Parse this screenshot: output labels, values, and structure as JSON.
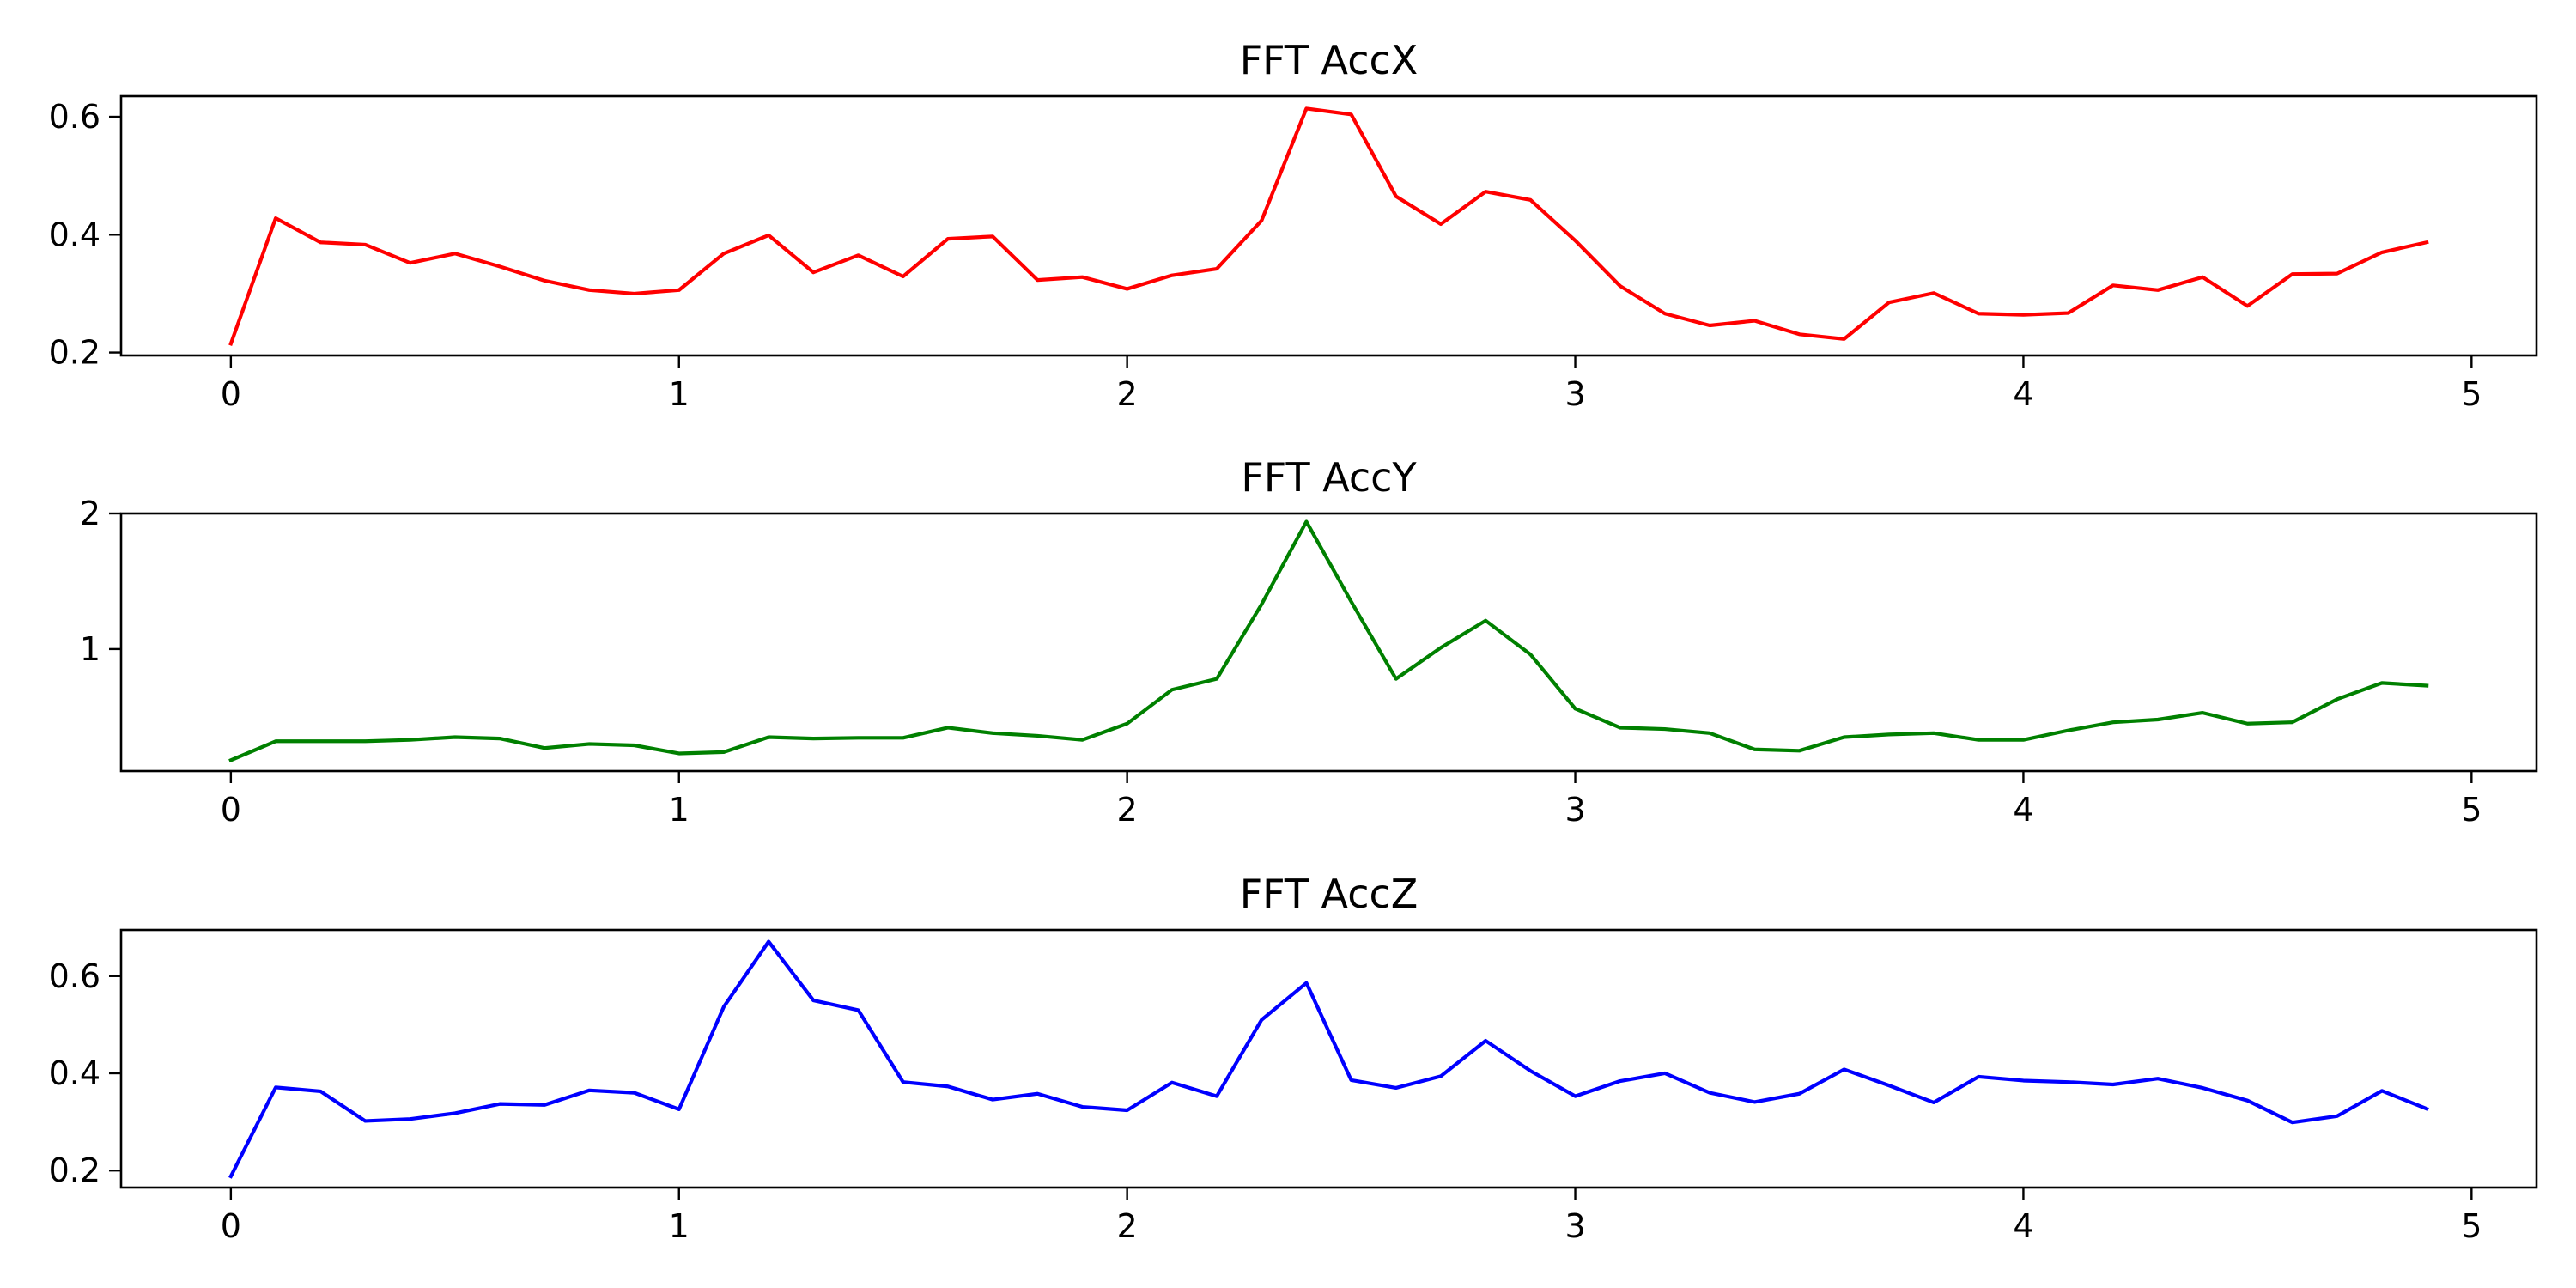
{
  "chart_data": [
    {
      "type": "line",
      "title": "FFT AccX",
      "xlabel": "",
      "ylabel": "",
      "xlim": [
        -0.245,
        5.145
      ],
      "ylim": [
        0.195,
        0.635
      ],
      "xticks": [
        0,
        1,
        2,
        3,
        4,
        5
      ],
      "yticks": [
        0.2,
        0.4,
        0.6
      ],
      "tick_labels_x": [
        "0",
        "1",
        "2",
        "3",
        "4",
        "5"
      ],
      "tick_labels_y": [
        "0.2",
        "0.4",
        "0.6"
      ],
      "grid": false,
      "color": "#ff0000",
      "x": [
        0.0,
        0.1,
        0.2,
        0.3,
        0.4,
        0.5,
        0.6,
        0.7,
        0.8,
        0.9,
        1.0,
        1.1,
        1.2,
        1.3,
        1.4,
        1.5,
        1.6,
        1.7,
        1.8,
        1.9,
        2.0,
        2.1,
        2.2,
        2.3,
        2.4,
        2.5,
        2.6,
        2.7,
        2.8,
        2.9,
        3.0,
        3.1,
        3.2,
        3.3,
        3.4,
        3.5,
        3.6,
        3.7,
        3.8,
        3.9,
        4.0,
        4.1,
        4.2,
        4.3,
        4.4,
        4.5,
        4.6,
        4.7,
        4.8,
        4.9
      ],
      "y": [
        0.215,
        0.428,
        0.387,
        0.383,
        0.352,
        0.368,
        0.346,
        0.322,
        0.306,
        0.3,
        0.306,
        0.368,
        0.399,
        0.336,
        0.365,
        0.329,
        0.393,
        0.397,
        0.323,
        0.328,
        0.308,
        0.331,
        0.342,
        0.424,
        0.614,
        0.604,
        0.465,
        0.418,
        0.473,
        0.459,
        0.39,
        0.313,
        0.266,
        0.246,
        0.254,
        0.231,
        0.223,
        0.285,
        0.301,
        0.266,
        0.264,
        0.267,
        0.314,
        0.306,
        0.328,
        0.279,
        0.333,
        0.334,
        0.37,
        0.387
      ]
    },
    {
      "type": "line",
      "title": "FFT AccY",
      "xlabel": "",
      "ylabel": "",
      "xlim": [
        -0.245,
        5.145
      ],
      "ylim": [
        0.1,
        2.0
      ],
      "xticks": [
        0,
        1,
        2,
        3,
        4,
        5
      ],
      "yticks": [
        1,
        2
      ],
      "tick_labels_x": [
        "0",
        "1",
        "2",
        "3",
        "4",
        "5"
      ],
      "tick_labels_y": [
        "1",
        "2"
      ],
      "grid": false,
      "color": "#008000",
      "x": [
        0.0,
        0.1,
        0.2,
        0.3,
        0.4,
        0.5,
        0.6,
        0.7,
        0.8,
        0.9,
        1.0,
        1.1,
        1.2,
        1.3,
        1.4,
        1.5,
        1.6,
        1.7,
        1.8,
        1.9,
        2.0,
        2.1,
        2.2,
        2.3,
        2.4,
        2.5,
        2.6,
        2.7,
        2.8,
        2.9,
        3.0,
        3.1,
        3.2,
        3.3,
        3.4,
        3.5,
        3.6,
        3.7,
        3.8,
        3.9,
        4.0,
        4.1,
        4.2,
        4.3,
        4.4,
        4.5,
        4.6,
        4.7,
        4.8,
        4.9
      ],
      "y": [
        0.18,
        0.32,
        0.32,
        0.32,
        0.33,
        0.35,
        0.34,
        0.27,
        0.3,
        0.29,
        0.23,
        0.24,
        0.35,
        0.34,
        0.345,
        0.345,
        0.42,
        0.38,
        0.36,
        0.33,
        0.45,
        0.7,
        0.78,
        1.33,
        1.94,
        1.35,
        0.78,
        1.01,
        1.21,
        0.96,
        0.56,
        0.42,
        0.41,
        0.38,
        0.26,
        0.25,
        0.35,
        0.37,
        0.38,
        0.33,
        0.33,
        0.4,
        0.46,
        0.48,
        0.53,
        0.45,
        0.46,
        0.63,
        0.75,
        0.73
      ]
    },
    {
      "type": "line",
      "title": "FFT AccZ",
      "xlabel": "",
      "ylabel": "",
      "xlim": [
        -0.245,
        5.145
      ],
      "ylim": [
        0.165,
        0.695
      ],
      "xticks": [
        0,
        1,
        2,
        3,
        4,
        5
      ],
      "yticks": [
        0.2,
        0.4,
        0.6
      ],
      "tick_labels_x": [
        "0",
        "1",
        "2",
        "3",
        "4",
        "5"
      ],
      "tick_labels_y": [
        "0.2",
        "0.4",
        "0.6"
      ],
      "grid": false,
      "color": "#0000ff",
      "x": [
        0.0,
        0.1,
        0.2,
        0.3,
        0.4,
        0.5,
        0.6,
        0.7,
        0.8,
        0.9,
        1.0,
        1.1,
        1.2,
        1.3,
        1.4,
        1.5,
        1.6,
        1.7,
        1.8,
        1.9,
        2.0,
        2.1,
        2.2,
        2.3,
        2.4,
        2.5,
        2.6,
        2.7,
        2.8,
        2.9,
        3.0,
        3.1,
        3.2,
        3.3,
        3.4,
        3.5,
        3.6,
        3.7,
        3.8,
        3.9,
        4.0,
        4.1,
        4.2,
        4.3,
        4.4,
        4.5,
        4.6,
        4.7,
        4.8,
        4.9
      ],
      "y": [
        0.188,
        0.371,
        0.363,
        0.302,
        0.306,
        0.318,
        0.337,
        0.335,
        0.365,
        0.36,
        0.326,
        0.537,
        0.671,
        0.55,
        0.53,
        0.382,
        0.373,
        0.346,
        0.358,
        0.331,
        0.324,
        0.381,
        0.353,
        0.51,
        0.586,
        0.386,
        0.37,
        0.394,
        0.467,
        0.405,
        0.353,
        0.384,
        0.4,
        0.36,
        0.341,
        0.358,
        0.408,
        0.375,
        0.34,
        0.393,
        0.385,
        0.382,
        0.377,
        0.389,
        0.37,
        0.344,
        0.299,
        0.312,
        0.364,
        0.327
      ]
    }
  ]
}
